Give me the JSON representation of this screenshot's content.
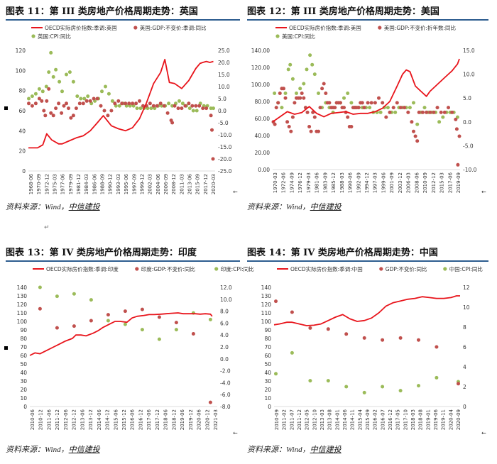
{
  "source_label": "资料来源：",
  "source_wind": "Wind",
  "source_sep": "，",
  "source_org": "中信建投",
  "colors": {
    "line": "#e8141b",
    "gdp": "#c0504d",
    "cpi": "#9bbb59",
    "rule": "#2d5d8f"
  },
  "chart_data": [
    {
      "type": "line+scatter",
      "title": "图表 11：第 III 类房地产价格周期走势：英国",
      "legend": [
        "OECD实际房价指数:季调:英国",
        "英国:GDP:不变价:季调:同比",
        "英国:CPI:同比"
      ],
      "x_ticks": [
        "1968-06",
        "1970-09",
        "1972-12",
        "1975-03",
        "1977-06",
        "1979-09",
        "1981-12",
        "1984-03",
        "1986-06",
        "1988-09",
        "1990-12",
        "1993-03",
        "1995-06",
        "1997-09",
        "1999-12",
        "2002-03",
        "2004-06",
        "2006-09",
        "2008-12",
        "2011-03",
        "2013-06",
        "2015-09",
        "2017-12",
        "2020-03"
      ],
      "x_range": [
        1968.4,
        2021.5
      ],
      "left_axis": {
        "range": [
          0,
          120
        ],
        "ticks": [
          0,
          20,
          40,
          60,
          80,
          100,
          120
        ]
      },
      "right_axis": {
        "range": [
          -25,
          25
        ],
        "ticks": [
          -25,
          -20,
          -15,
          -10,
          -5,
          0,
          5,
          10,
          15,
          20,
          25
        ]
      },
      "line": {
        "x": [
          1968.4,
          1971,
          1972.5,
          1973.6,
          1975,
          1977,
          1978,
          1980,
          1982,
          1984,
          1986,
          1988,
          1989.7,
          1992,
          1994,
          1996,
          1998,
          2000,
          2002,
          2004,
          2006,
          2007.2,
          2008.5,
          2010,
          2012,
          2014,
          2016,
          2017.2,
          2018,
          2019,
          2020,
          2021
        ],
        "y": [
          23,
          23,
          26,
          37,
          31,
          27,
          27,
          30,
          33,
          35,
          40,
          48,
          55,
          45,
          42,
          40,
          43,
          52,
          68,
          87,
          98,
          111,
          88,
          87,
          82,
          90,
          102,
          107,
          108,
          109,
          108,
          109
        ]
      },
      "gdp": {
        "x": [
          1968.5,
          1969.5,
          1970.5,
          1971.5,
          1972.2,
          1972.8,
          1973.2,
          1973.6,
          1974.2,
          1974.8,
          1975.5,
          1976.2,
          1977,
          1977.8,
          1978.5,
          1979.2,
          1979.8,
          1980.5,
          1981.2,
          1982,
          1983,
          1984,
          1985,
          1986,
          1987,
          1988,
          1989,
          1990,
          1991,
          1992,
          1993,
          1994,
          1995,
          1996,
          1997,
          1998,
          1999,
          2000,
          2001,
          2002,
          2003,
          2004,
          2005,
          2006,
          2007,
          2008,
          2009,
          2009.3,
          2010,
          2011,
          2012,
          2013,
          2014,
          2015,
          2016,
          2017,
          2018,
          2019,
          2020.3,
          2020.6,
          2020.9
        ],
        "y": [
          3,
          2,
          3,
          5,
          4,
          0,
          -2,
          4,
          9,
          -1,
          -2,
          1,
          3,
          -1,
          2,
          3,
          1,
          -3,
          -2,
          1,
          3,
          3,
          4,
          4,
          5,
          5,
          2,
          0,
          -2,
          0,
          3,
          4,
          3,
          3,
          3,
          3,
          3,
          4,
          2,
          2,
          3,
          2,
          2,
          3,
          2,
          -1,
          -4,
          -5,
          2,
          1,
          1,
          2,
          3,
          2,
          2,
          2,
          1,
          1,
          -2,
          -8,
          -20
        ]
      },
      "cpi": {
        "x": [
          1968.5,
          1969.5,
          1970.5,
          1971.5,
          1972.5,
          1973.5,
          1974.2,
          1974.8,
          1975.5,
          1976.2,
          1977.2,
          1978,
          1979.2,
          1980.2,
          1981.2,
          1982.3,
          1983.3,
          1984.3,
          1985.3,
          1986.3,
          1987.3,
          1988.3,
          1989.3,
          1990.3,
          1991.3,
          1992.3,
          1993.3,
          1994.3,
          1995.3,
          1996.3,
          1997.3,
          1998.3,
          1999.3,
          2000.3,
          2001.3,
          2002.3,
          2003.3,
          2004.3,
          2005.3,
          2006.3,
          2007.3,
          2008.3,
          2009.3,
          2010.3,
          2011.3,
          2012.3,
          2013.3,
          2014.3,
          2015.3,
          2016.3,
          2017.3,
          2018.3,
          2019.3,
          2020.3,
          2021
        ],
        "y": [
          5,
          6,
          7,
          9,
          8,
          10,
          16,
          24,
          14,
          17,
          12,
          8,
          15,
          16,
          12,
          6,
          5,
          5,
          6,
          3,
          4,
          5,
          8,
          10,
          7,
          4,
          2,
          2,
          3,
          2,
          2,
          2,
          1,
          1,
          1,
          1,
          1,
          1,
          2,
          2,
          2,
          3,
          2,
          3,
          4,
          3,
          2,
          1,
          0,
          0,
          3,
          2,
          2,
          1,
          1
        ]
      }
    },
    {
      "type": "line+scatter",
      "title": "图表 12：第 III 类房地产价格周期走势：美国",
      "legend": [
        "OECD实际房价指数:季调:美国",
        "美国:GDP:不变价:折年数:同比",
        "美国:CPI:同比"
      ],
      "x_ticks": [
        "1970-03",
        "1972-06",
        "1974-09",
        "1976-12",
        "1979-03",
        "1981-06",
        "1983-09",
        "1985-12",
        "1988-03",
        "1990-06",
        "1992-09",
        "1994-12",
        "1997-03",
        "1999-06",
        "2001-09",
        "2003-12",
        "2006-03",
        "2008-06",
        "2010-09",
        "2012-12",
        "2015-03",
        "2017-06",
        "2019-09"
      ],
      "x_range": [
        1970,
        2021.2
      ],
      "left_axis": {
        "range": [
          0,
          140
        ],
        "ticks": [
          0,
          20,
          40,
          60,
          80,
          100,
          120,
          140
        ]
      },
      "right_axis": {
        "range": [
          -10,
          15
        ],
        "ticks": [
          -10,
          -5,
          0,
          5,
          10,
          15
        ]
      },
      "line": {
        "x": [
          1970,
          1972,
          1974,
          1976,
          1978,
          1980,
          1982,
          1984,
          1986,
          1988,
          1990,
          1992,
          1994,
          1996,
          1998,
          2000,
          2002,
          2004,
          2005.5,
          2006.5,
          2007.5,
          2009,
          2010.5,
          2012,
          2013,
          2015,
          2017,
          2019,
          2020.5,
          2021
        ],
        "y": [
          56,
          62,
          68,
          65,
          67,
          74,
          66,
          62,
          66,
          67,
          68,
          65,
          66,
          66,
          68,
          72,
          80,
          98,
          112,
          117,
          115,
          98,
          92,
          86,
          92,
          100,
          108,
          116,
          124,
          130
        ]
      },
      "gdp": {
        "x": [
          1970.2,
          1970.6,
          1971,
          1971.5,
          1972,
          1972.5,
          1973,
          1973.5,
          1974,
          1974.5,
          1975,
          1975.5,
          1976,
          1976.5,
          1977,
          1977.5,
          1978,
          1978.5,
          1979,
          1979.5,
          1980,
          1980.5,
          1981,
          1981.5,
          1982,
          1982.5,
          1983,
          1983.5,
          1984,
          1984.5,
          1985,
          1985.5,
          1986,
          1986.5,
          1987,
          1987.5,
          1988,
          1988.5,
          1989,
          1989.5,
          1990,
          1990.5,
          1991,
          1991.5,
          1992,
          1992.5,
          1993,
          1993.5,
          1994,
          1994.5,
          1995,
          1996,
          1997,
          1998,
          1999,
          2000,
          2001,
          2002,
          2003,
          2004,
          2005,
          2006,
          2007,
          2008,
          2008.5,
          2009,
          2009.5,
          2010,
          2011,
          2012,
          2013,
          2014,
          2015,
          2016,
          2017,
          2018,
          2019,
          2020,
          2020.3,
          2020.6,
          2021
        ],
        "y": [
          0,
          -0.5,
          3,
          4,
          6,
          7,
          7,
          5,
          0,
          -1,
          -2,
          1,
          4,
          5,
          5,
          5,
          6,
          5,
          3,
          2,
          -1,
          -2,
          2,
          1,
          -2,
          -2,
          3,
          7,
          8,
          6,
          4,
          4,
          3,
          3,
          3,
          4,
          4,
          4,
          3,
          3,
          2,
          1,
          -1,
          -1,
          3,
          3,
          3,
          3,
          4,
          4,
          3,
          4,
          4,
          4,
          5,
          4,
          1,
          2,
          3,
          4,
          3,
          3,
          2,
          0,
          -2,
          -3,
          -4,
          2,
          2,
          2,
          2,
          2,
          3,
          2,
          2,
          3,
          2,
          0.5,
          -1.5,
          -9,
          -3
        ]
      },
      "cpi": {
        "x": [
          1970.5,
          1971.5,
          1972.5,
          1973.5,
          1974.3,
          1974.8,
          1975.5,
          1976.5,
          1977.5,
          1978.5,
          1979.3,
          1980.2,
          1980.8,
          1981.5,
          1982.5,
          1983.5,
          1984.5,
          1985.5,
          1986.5,
          1987.5,
          1988.5,
          1989.5,
          1990.5,
          1991.5,
          1992.5,
          1993.5,
          1994.5,
          1995.5,
          1996.5,
          1997.5,
          1998.5,
          1999.5,
          2000.5,
          2001.5,
          2002.5,
          2003.5,
          2004.5,
          2005.5,
          2006.5,
          2007.5,
          2008.5,
          2009.5,
          2010.5,
          2011.5,
          2012.5,
          2013.5,
          2014.5,
          2015.5,
          2016.5,
          2017.5,
          2018.5,
          2019.5,
          2020.5
        ],
        "y": [
          6,
          4,
          3,
          6,
          11,
          12,
          9,
          6,
          7,
          8,
          11,
          14,
          12,
          10,
          6,
          3,
          4,
          3,
          2,
          4,
          4,
          5,
          6,
          4,
          3,
          3,
          3,
          3,
          3,
          2,
          2,
          2,
          3,
          3,
          2,
          2,
          3,
          3,
          3,
          3,
          4,
          -0.5,
          2,
          3,
          2,
          2,
          2,
          0,
          1,
          2,
          2,
          2,
          1
        ]
      }
    },
    {
      "type": "line+scatter",
      "title": "图表 13：第 IV 类房地产价格周期走势：印度",
      "legend": [
        "OECD实际房价指数:季调:印度",
        "印度:GDP:不变价:同比",
        "印度:CPI:同比"
      ],
      "x_ticks": [
        "2010-06",
        "2010-12",
        "2011-06",
        "2011-12",
        "2012-06",
        "2012-12",
        "2013-06",
        "2013-12",
        "2014-06",
        "2014-12",
        "2015-06",
        "2015-12",
        "2016-06",
        "2016-12",
        "2017-06",
        "2017-12",
        "2018-06",
        "2018-12",
        "2019-06",
        "2019-12",
        "2020-06",
        "2020-12",
        "2021-03"
      ],
      "x_range": [
        2010.3,
        2021.3
      ],
      "left_axis": {
        "range": [
          0,
          140
        ],
        "ticks": [
          0,
          10,
          20,
          30,
          40,
          50,
          60,
          70,
          80,
          90,
          100,
          110,
          120,
          130,
          140
        ]
      },
      "right_axis": {
        "range": [
          -8,
          12
        ],
        "ticks": [
          -8,
          -6,
          -4,
          -2,
          0,
          2,
          4,
          6,
          8,
          10,
          12
        ]
      },
      "line": {
        "x": [
          2010.3,
          2010.6,
          2010.9,
          2011.3,
          2011.7,
          2012,
          2012.4,
          2012.8,
          2013,
          2013.3,
          2013.6,
          2014,
          2014.3,
          2014.6,
          2015,
          2015.3,
          2015.6,
          2016,
          2016.3,
          2016.6,
          2017,
          2017.3,
          2017.6,
          2018,
          2018.3,
          2018.6,
          2019,
          2019.3,
          2019.6,
          2020,
          2020.3,
          2020.6,
          2020.9,
          2021
        ],
        "y": [
          60,
          63,
          62,
          66,
          70,
          73,
          77,
          80,
          84,
          84,
          83,
          86,
          89,
          93,
          97,
          100,
          100,
          99,
          104,
          106,
          107,
          108,
          108,
          108.5,
          109,
          109.5,
          110,
          109,
          109,
          109,
          108.5,
          109,
          108.5,
          106
        ]
      },
      "gdp": {
        "x": [
          2010.9,
          2011.9,
          2012.9,
          2013.9,
          2014.9,
          2015.9,
          2016.9,
          2017.9,
          2018.9,
          2019.9,
          2020.9
        ],
        "y": [
          8.4,
          5.2,
          5.5,
          6.4,
          7.4,
          8.0,
          8.3,
          7.0,
          6.1,
          4.2,
          -7.3
        ]
      },
      "cpi": {
        "x": [
          2010.9,
          2011.9,
          2012.9,
          2013.9,
          2014.9,
          2015.9,
          2016.9,
          2017.9,
          2018.9,
          2019.9,
          2020.9
        ],
        "y": [
          12.0,
          10.5,
          10.9,
          9.9,
          6.4,
          5.8,
          4.9,
          3.3,
          4.9,
          7.7,
          6.6
        ]
      }
    },
    {
      "type": "line+scatter",
      "title": "图表 14：第 IV 类房地产价格周期走势：中国",
      "legend": [
        "OECD实际房价指数:季调:中国",
        "GDP:不变价:同比",
        "中国:CPI:同比"
      ],
      "x_ticks": [
        "2010-09",
        "2011-02",
        "2011-07",
        "2011-12",
        "2012-05",
        "2012-10",
        "2013-03",
        "2013-08",
        "2014-01",
        "2014-06",
        "2014-11",
        "2015-04",
        "2015-09",
        "2016-02",
        "2016-07",
        "2016-12",
        "2017-05",
        "2017-10",
        "2018-03",
        "2018-08",
        "2019-01",
        "2019-06",
        "2019-11",
        "2020-04",
        "2020-09"
      ],
      "x_range": [
        2010.6,
        2020.9
      ],
      "left_axis": {
        "range": [
          0,
          140
        ],
        "ticks": [
          0,
          10,
          20,
          30,
          40,
          50,
          60,
          70,
          80,
          90,
          100,
          110,
          120,
          130,
          140
        ]
      },
      "right_axis": {
        "range": [
          0,
          12
        ],
        "ticks": [
          0,
          2,
          4,
          6,
          8,
          10,
          12
        ]
      },
      "line": {
        "x": [
          2010.6,
          2010.9,
          2011.3,
          2011.6,
          2012,
          2012.4,
          2012.8,
          2013.2,
          2013.6,
          2014,
          2014.4,
          2014.8,
          2015.2,
          2015.6,
          2016,
          2016.4,
          2016.8,
          2017.2,
          2017.6,
          2018,
          2018.4,
          2018.8,
          2019.2,
          2019.6,
          2020,
          2020.4,
          2020.7,
          2020.9
        ],
        "y": [
          96,
          97,
          99,
          99,
          97,
          95,
          95.5,
          97,
          101,
          105,
          108,
          103,
          100,
          101,
          104,
          110,
          118,
          122,
          124,
          126,
          127,
          129,
          128,
          127,
          127,
          128,
          130,
          130
        ]
      },
      "gdp": {
        "x": [
          2010.7,
          2011.6,
          2012.6,
          2013.6,
          2014.6,
          2015.6,
          2016.6,
          2017.6,
          2018.6,
          2019.6,
          2020.8
        ],
        "y": [
          10.6,
          9.5,
          7.9,
          7.8,
          7.3,
          6.9,
          6.7,
          6.9,
          6.7,
          6.0,
          2.3
        ]
      },
      "cpi": {
        "x": [
          2010.7,
          2011.6,
          2012.6,
          2013.6,
          2014.6,
          2015.6,
          2016.6,
          2017.6,
          2018.6,
          2019.6,
          2020.8
        ],
        "y": [
          3.3,
          5.4,
          2.6,
          2.6,
          2.0,
          1.4,
          2.0,
          1.6,
          2.1,
          2.9,
          2.5
        ]
      }
    }
  ]
}
